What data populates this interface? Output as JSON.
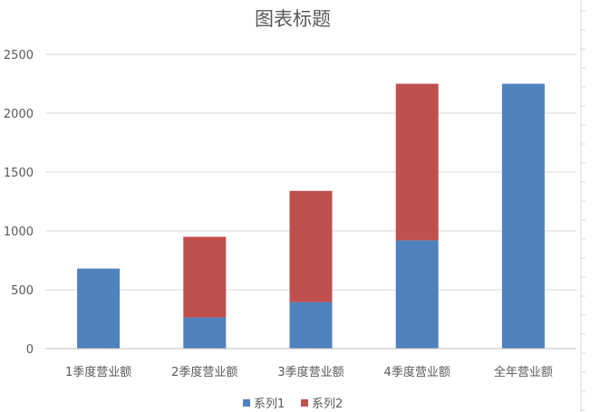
{
  "chart_data": {
    "type": "bar",
    "stacked": true,
    "title": "图表标题",
    "categories": [
      "1季度营业额",
      "2季度营业额",
      "3季度营业额",
      "4季度营业额",
      "全年营业额"
    ],
    "series": [
      {
        "name": "系列1",
        "color": "#4f81bd",
        "values": [
          680,
          265,
          395,
          920,
          2250
        ]
      },
      {
        "name": "系列2",
        "color": "#c0504d",
        "values": [
          0,
          685,
          945,
          1330,
          0
        ]
      }
    ],
    "ylim": [
      0,
      2500
    ],
    "yticks": [
      0,
      500,
      1000,
      1500,
      2000,
      2500
    ],
    "grid": true,
    "legend_position": "bottom"
  }
}
